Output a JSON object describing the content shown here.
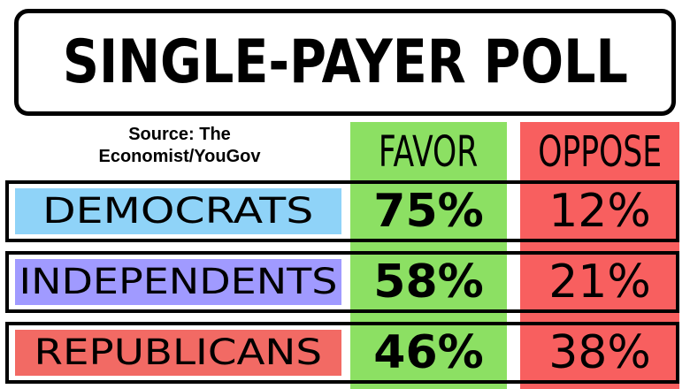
{
  "title": "SINGLE-PAYER POLL",
  "source": {
    "line1": "Source: The",
    "line2": "Economist/YouGov"
  },
  "colors": {
    "favor": "#8ce063",
    "oppose": "#f85f5f",
    "democrats": "#8fd3f8",
    "independents": "#a09aff",
    "republicans": "#f26a64"
  },
  "chart_data": {
    "type": "table",
    "title": "SINGLE-PAYER POLL",
    "columns": [
      "FAVOR",
      "OPPOSE"
    ],
    "rows": [
      {
        "label": "DEMOCRATS",
        "favor": "75%",
        "oppose": "12%"
      },
      {
        "label": "INDEPENDENTS",
        "favor": "58%",
        "oppose": "21%"
      },
      {
        "label": "REPUBLICANS",
        "favor": "46%",
        "oppose": "38%"
      }
    ]
  }
}
